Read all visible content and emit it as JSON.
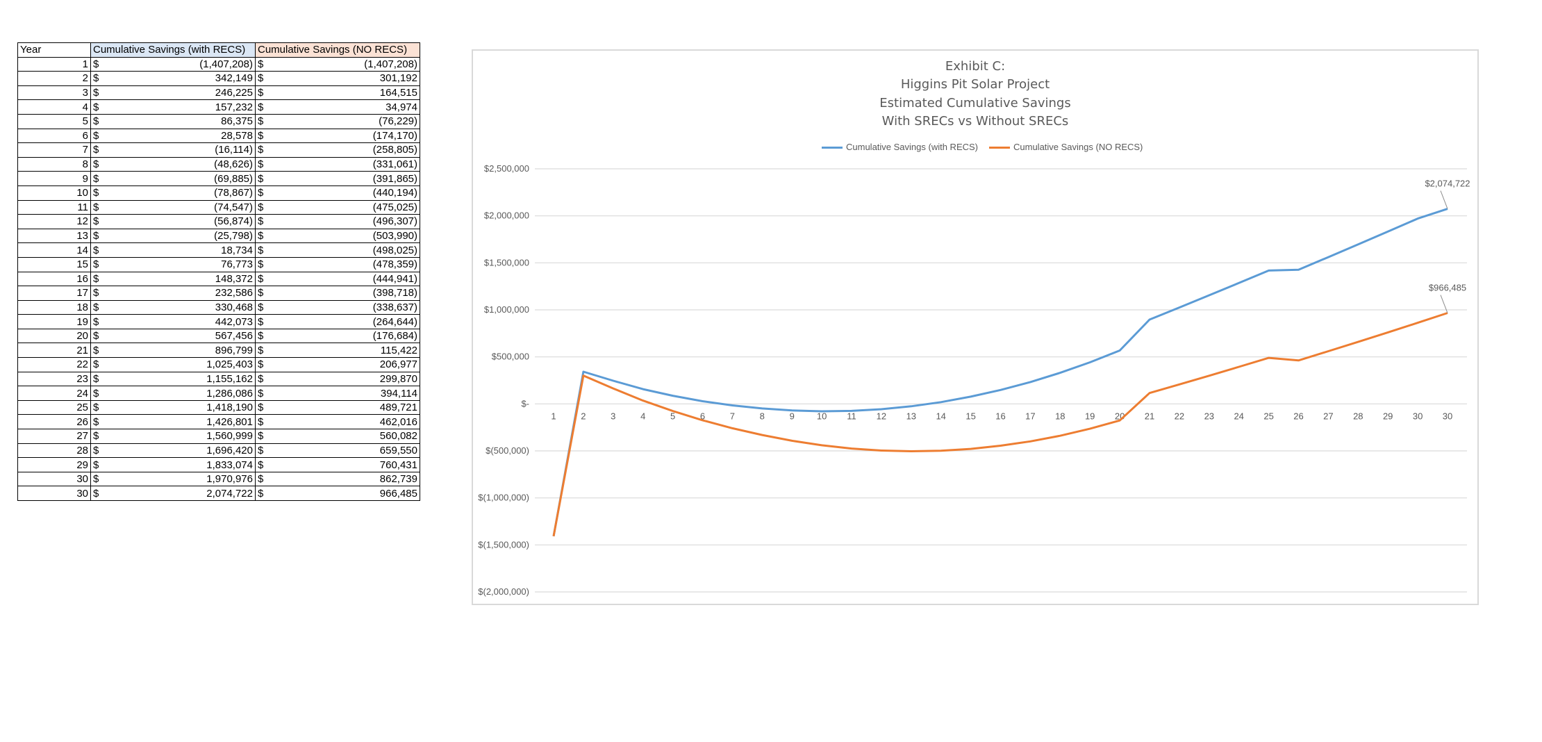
{
  "table": {
    "headers": {
      "year": "Year",
      "with_recs": "Cumulative Savings (with RECS)",
      "no_recs": "Cumulative Savings (NO RECS)"
    },
    "currency_symbol": "$",
    "rows": [
      {
        "year": "1",
        "with": "(1,407,208)",
        "no": "(1,407,208)"
      },
      {
        "year": "2",
        "with": "342,149",
        "no": "301,192"
      },
      {
        "year": "3",
        "with": "246,225",
        "no": "164,515"
      },
      {
        "year": "4",
        "with": "157,232",
        "no": "34,974"
      },
      {
        "year": "5",
        "with": "86,375",
        "no": "(76,229)"
      },
      {
        "year": "6",
        "with": "28,578",
        "no": "(174,170)"
      },
      {
        "year": "7",
        "with": "(16,114)",
        "no": "(258,805)"
      },
      {
        "year": "8",
        "with": "(48,626)",
        "no": "(331,061)"
      },
      {
        "year": "9",
        "with": "(69,885)",
        "no": "(391,865)"
      },
      {
        "year": "10",
        "with": "(78,867)",
        "no": "(440,194)"
      },
      {
        "year": "11",
        "with": "(74,547)",
        "no": "(475,025)"
      },
      {
        "year": "12",
        "with": "(56,874)",
        "no": "(496,307)"
      },
      {
        "year": "13",
        "with": "(25,798)",
        "no": "(503,990)"
      },
      {
        "year": "14",
        "with": "18,734",
        "no": "(498,025)"
      },
      {
        "year": "15",
        "with": "76,773",
        "no": "(478,359)"
      },
      {
        "year": "16",
        "with": "148,372",
        "no": "(444,941)"
      },
      {
        "year": "17",
        "with": "232,586",
        "no": "(398,718)"
      },
      {
        "year": "18",
        "with": "330,468",
        "no": "(338,637)"
      },
      {
        "year": "19",
        "with": "442,073",
        "no": "(264,644)"
      },
      {
        "year": "20",
        "with": "567,456",
        "no": "(176,684)"
      },
      {
        "year": "21",
        "with": "896,799",
        "no": "115,422"
      },
      {
        "year": "22",
        "with": "1,025,403",
        "no": "206,977"
      },
      {
        "year": "23",
        "with": "1,155,162",
        "no": "299,870"
      },
      {
        "year": "24",
        "with": "1,286,086",
        "no": "394,114"
      },
      {
        "year": "25",
        "with": "1,418,190",
        "no": "489,721"
      },
      {
        "year": "26",
        "with": "1,426,801",
        "no": "462,016"
      },
      {
        "year": "27",
        "with": "1,560,999",
        "no": "560,082"
      },
      {
        "year": "28",
        "with": "1,696,420",
        "no": "659,550"
      },
      {
        "year": "29",
        "with": "1,833,074",
        "no": "760,431"
      },
      {
        "year": "30",
        "with": "1,970,976",
        "no": "862,739"
      },
      {
        "year": "30",
        "with": "2,074,722",
        "no": "966,485"
      }
    ],
    "colors": {
      "header_with": "#dbe7f5",
      "header_no": "#fbe2d5"
    }
  },
  "chart_data": {
    "type": "line",
    "title_lines": [
      "Exhibit C:",
      "Higgins Pit Solar Project",
      "Estimated Cumulative Savings",
      "With SRECs vs Without SRECs"
    ],
    "categories": [
      "1",
      "2",
      "3",
      "4",
      "5",
      "6",
      "7",
      "8",
      "9",
      "10",
      "11",
      "12",
      "13",
      "14",
      "15",
      "16",
      "17",
      "18",
      "19",
      "20",
      "21",
      "22",
      "23",
      "24",
      "25",
      "26",
      "27",
      "28",
      "29",
      "30",
      "30"
    ],
    "series": [
      {
        "name": "Cumulative Savings (with RECS)",
        "color": "#5b9bd5",
        "values": [
          -1407208,
          342149,
          246225,
          157232,
          86375,
          28578,
          -16114,
          -48626,
          -69885,
          -78867,
          -74547,
          -56874,
          -25798,
          18734,
          76773,
          148372,
          232586,
          330468,
          442073,
          567456,
          896799,
          1025403,
          1155162,
          1286086,
          1418190,
          1426801,
          1560999,
          1696420,
          1833074,
          1970976,
          2074722
        ]
      },
      {
        "name": "Cumulative Savings (NO RECS)",
        "color": "#ed7d31",
        "values": [
          -1407208,
          301192,
          164515,
          34974,
          -76229,
          -174170,
          -258805,
          -331061,
          -391865,
          -440194,
          -475025,
          -496307,
          -503990,
          -498025,
          -478359,
          -444941,
          -398718,
          -338637,
          -264644,
          -176684,
          115422,
          206977,
          299870,
          394114,
          489721,
          462016,
          560082,
          659550,
          760431,
          862739,
          966485
        ]
      }
    ],
    "end_labels": [
      "$2,074,722",
      "$966,485"
    ],
    "y_ticks": [
      {
        "value": 2500000,
        "label": "$2,500,000"
      },
      {
        "value": 2000000,
        "label": "$2,000,000"
      },
      {
        "value": 1500000,
        "label": "$1,500,000"
      },
      {
        "value": 1000000,
        "label": "$1,000,000"
      },
      {
        "value": 500000,
        "label": "$500,000"
      },
      {
        "value": 0,
        "label": "$-"
      },
      {
        "value": -500000,
        "label": "$(500,000)"
      },
      {
        "value": -1000000,
        "label": "$(1,000,000)"
      },
      {
        "value": -1500000,
        "label": "$(1,500,000)"
      },
      {
        "value": -2000000,
        "label": "$(2,000,000)"
      }
    ],
    "ylim": [
      -2000000,
      2500000
    ],
    "grid": true,
    "legend_position": "top",
    "gridline_color": "#d9d9d9"
  }
}
